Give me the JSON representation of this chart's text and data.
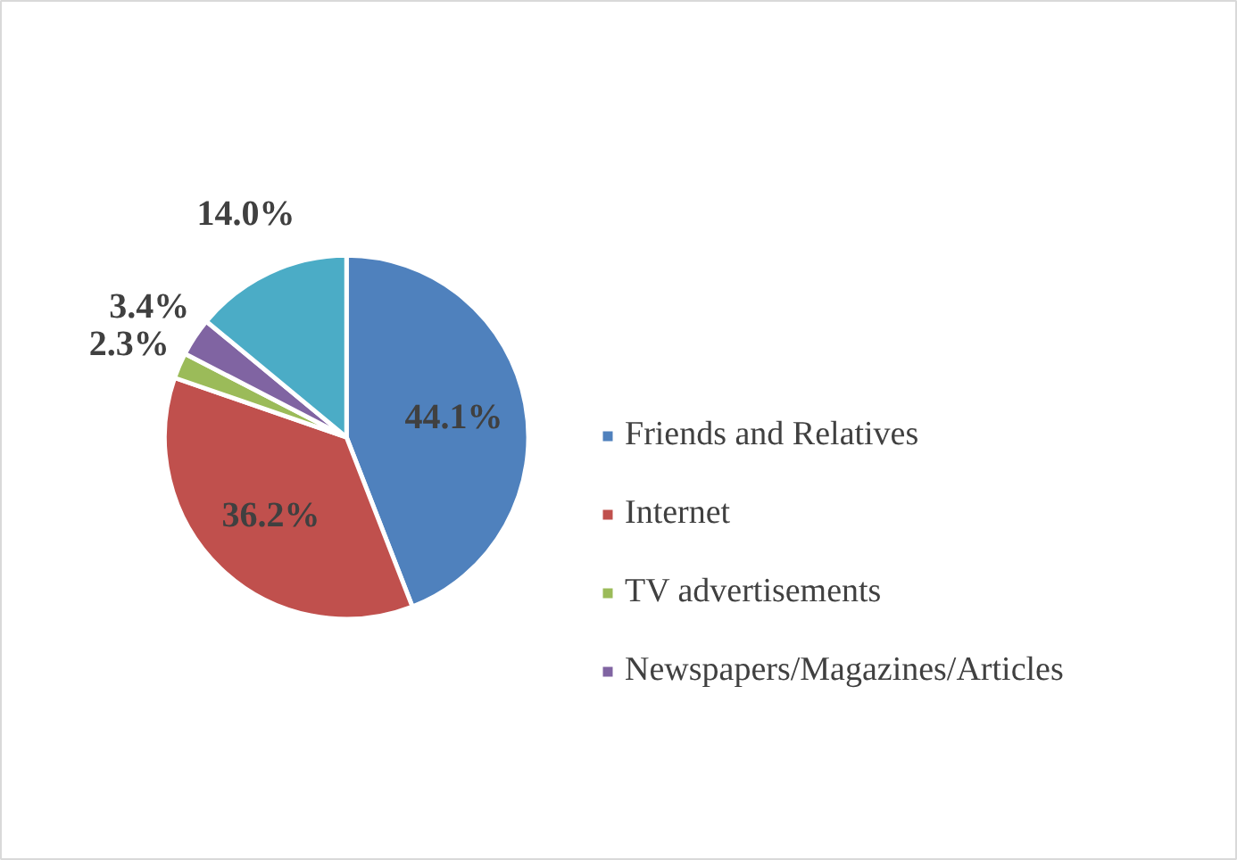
{
  "chart_data": {
    "type": "pie",
    "categories": [
      "Friends and Relatives",
      "Internet",
      "TV advertisements",
      "Newspapers/Magazines/Articles",
      null
    ],
    "values": [
      44.1,
      36.2,
      2.3,
      3.4,
      14.0
    ],
    "colors": [
      "#4f81bd",
      "#c0504d",
      "#9bbb59",
      "#8064a2",
      "#4bacc6"
    ],
    "value_labels": [
      "44.1%",
      "36.2%",
      "2.3%",
      "3.4%",
      "14.0%"
    ],
    "legend": "right"
  }
}
